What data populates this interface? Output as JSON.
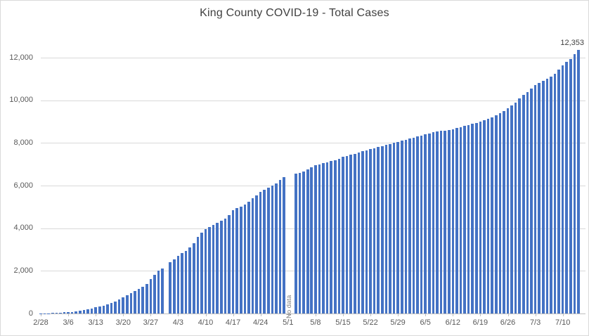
{
  "chart_data": {
    "type": "bar",
    "title": "King County COVID-19 - Total Cases",
    "xlabel": "",
    "ylabel": "",
    "legend": "none",
    "grid": true,
    "ylim": [
      0,
      12000
    ],
    "y_tick_values": [
      0,
      2000,
      4000,
      6000,
      8000,
      10000,
      12000
    ],
    "y_tick_labels": [
      "0",
      "2,000",
      "4,000",
      "6,000",
      "8,000",
      "10,000",
      "12,000"
    ],
    "x_tick_labels": [
      "2/28",
      "3/6",
      "3/13",
      "3/20",
      "3/27",
      "4/3",
      "4/10",
      "4/17",
      "4/24",
      "5/1",
      "5/8",
      "5/15",
      "5/22",
      "5/29",
      "6/5",
      "6/12",
      "6/19",
      "6/26",
      "7/3",
      "7/10"
    ],
    "x_tick_step_days": 7,
    "x": [
      "2/28",
      "2/29",
      "3/1",
      "3/2",
      "3/3",
      "3/4",
      "3/5",
      "3/6",
      "3/7",
      "3/8",
      "3/9",
      "3/10",
      "3/11",
      "3/12",
      "3/13",
      "3/14",
      "3/15",
      "3/16",
      "3/17",
      "3/18",
      "3/19",
      "3/20",
      "3/21",
      "3/22",
      "3/23",
      "3/24",
      "3/25",
      "3/26",
      "3/27",
      "3/28",
      "3/29",
      "3/30",
      "3/31",
      "4/1",
      "4/2",
      "4/3",
      "4/4",
      "4/5",
      "4/6",
      "4/7",
      "4/8",
      "4/9",
      "4/10",
      "4/11",
      "4/12",
      "4/13",
      "4/14",
      "4/15",
      "4/16",
      "4/17",
      "4/18",
      "4/19",
      "4/20",
      "4/21",
      "4/22",
      "4/23",
      "4/24",
      "4/25",
      "4/26",
      "4/27",
      "4/28",
      "4/29",
      "4/30",
      "5/1",
      "5/2",
      "5/3",
      "5/4",
      "5/5",
      "5/6",
      "5/7",
      "5/8",
      "5/9",
      "5/10",
      "5/11",
      "5/12",
      "5/13",
      "5/14",
      "5/15",
      "5/16",
      "5/17",
      "5/18",
      "5/19",
      "5/20",
      "5/21",
      "5/22",
      "5/23",
      "5/24",
      "5/25",
      "5/26",
      "5/27",
      "5/28",
      "5/29",
      "5/30",
      "5/31",
      "6/1",
      "6/2",
      "6/3",
      "6/4",
      "6/5",
      "6/6",
      "6/7",
      "6/8",
      "6/9",
      "6/10",
      "6/11",
      "6/12",
      "6/13",
      "6/14",
      "6/15",
      "6/16",
      "6/17",
      "6/18",
      "6/19",
      "6/20",
      "6/21",
      "6/22",
      "6/23",
      "6/24",
      "6/25",
      "6/26",
      "6/27",
      "6/28",
      "6/29",
      "6/30",
      "7/1",
      "7/2",
      "7/3",
      "7/4",
      "7/5",
      "7/6",
      "7/7",
      "7/8",
      "7/9",
      "7/10",
      "7/11",
      "7/12",
      "7/13",
      "7/14"
    ],
    "values": [
      5,
      10,
      15,
      25,
      35,
      45,
      55,
      65,
      80,
      95,
      120,
      155,
      200,
      240,
      285,
      330,
      375,
      420,
      485,
      570,
      660,
      750,
      860,
      970,
      1070,
      1170,
      1250,
      1380,
      1600,
      1800,
      2000,
      2100,
      null,
      2400,
      2550,
      2700,
      2850,
      2950,
      3100,
      3300,
      3610,
      3780,
      3940,
      4050,
      4150,
      4250,
      4350,
      4450,
      4600,
      4850,
      4950,
      5000,
      5100,
      5250,
      5400,
      5550,
      5700,
      5800,
      5900,
      6000,
      6100,
      6250,
      6400,
      null,
      null,
      6550,
      6600,
      6650,
      6750,
      6850,
      6950,
      7000,
      7050,
      7100,
      7150,
      7200,
      7250,
      7350,
      7400,
      7450,
      7500,
      7550,
      7600,
      7650,
      7700,
      7750,
      7800,
      7850,
      7900,
      7950,
      8000,
      8050,
      8100,
      8150,
      8200,
      8250,
      8300,
      8350,
      8400,
      8450,
      8500,
      8530,
      8560,
      8580,
      8600,
      8650,
      8700,
      8750,
      8800,
      8850,
      8900,
      8950,
      9000,
      9060,
      9130,
      9200,
      9300,
      9400,
      9500,
      9620,
      9750,
      9900,
      10100,
      10250,
      10400,
      10550,
      10700,
      10800,
      10900,
      11000,
      11100,
      11250,
      11450,
      11650,
      11800,
      11950,
      12150,
      12353
    ],
    "annotations": {
      "no_data": {
        "label": "No data",
        "at_date": "5/1"
      },
      "last_value": {
        "label": "12,353",
        "at_date": "7/14"
      }
    },
    "colors": {
      "bar": "#4472C4",
      "gridline": "#D9D9D9",
      "axis_line": "#BFBFBF",
      "tick_text": "#595959",
      "title_text": "#404040",
      "no_data_text": "#7F7F7F",
      "data_label_text": "#404040",
      "background": "#FFFFFF",
      "border": "#D9D9D9"
    }
  }
}
